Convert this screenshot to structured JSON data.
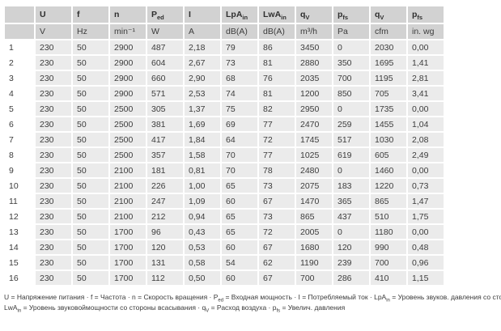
{
  "table": {
    "headers": [
      {
        "t": "",
        "s": ""
      },
      {
        "t": "U",
        "s": ""
      },
      {
        "t": "f",
        "s": ""
      },
      {
        "t": "n",
        "s": ""
      },
      {
        "t": "P",
        "s": "ed"
      },
      {
        "t": "I",
        "s": ""
      },
      {
        "t": "LpA",
        "s": "in"
      },
      {
        "t": "LwA",
        "s": "in"
      },
      {
        "t": "q",
        "s": "V"
      },
      {
        "t": "p",
        "s": "fs"
      },
      {
        "t": "q",
        "s": "V"
      },
      {
        "t": "p",
        "s": "fs"
      }
    ],
    "units": [
      "",
      "V",
      "Hz",
      "min⁻¹",
      "W",
      "A",
      "dB(A)",
      "dB(A)",
      "m³/h",
      "Pa",
      "cfm",
      "in. wg"
    ],
    "rows": [
      [
        "1",
        "230",
        "50",
        "2900",
        "487",
        "2,18",
        "79",
        "86",
        "3450",
        "0",
        "2030",
        "0,00"
      ],
      [
        "2",
        "230",
        "50",
        "2900",
        "604",
        "2,67",
        "73",
        "81",
        "2880",
        "350",
        "1695",
        "1,41"
      ],
      [
        "3",
        "230",
        "50",
        "2900",
        "660",
        "2,90",
        "68",
        "76",
        "2035",
        "700",
        "1195",
        "2,81"
      ],
      [
        "4",
        "230",
        "50",
        "2900",
        "571",
        "2,53",
        "74",
        "81",
        "1200",
        "850",
        "705",
        "3,41"
      ],
      [
        "5",
        "230",
        "50",
        "2500",
        "305",
        "1,37",
        "75",
        "82",
        "2950",
        "0",
        "1735",
        "0,00"
      ],
      [
        "6",
        "230",
        "50",
        "2500",
        "381",
        "1,69",
        "69",
        "77",
        "2470",
        "259",
        "1455",
        "1,04"
      ],
      [
        "7",
        "230",
        "50",
        "2500",
        "417",
        "1,84",
        "64",
        "72",
        "1745",
        "517",
        "1030",
        "2,08"
      ],
      [
        "8",
        "230",
        "50",
        "2500",
        "357",
        "1,58",
        "70",
        "77",
        "1025",
        "619",
        "605",
        "2,49"
      ],
      [
        "9",
        "230",
        "50",
        "2100",
        "181",
        "0,81",
        "70",
        "78",
        "2480",
        "0",
        "1460",
        "0,00"
      ],
      [
        "10",
        "230",
        "50",
        "2100",
        "226",
        "1,00",
        "65",
        "73",
        "2075",
        "183",
        "1220",
        "0,73"
      ],
      [
        "11",
        "230",
        "50",
        "2100",
        "247",
        "1,09",
        "60",
        "67",
        "1470",
        "365",
        "865",
        "1,47"
      ],
      [
        "12",
        "230",
        "50",
        "2100",
        "212",
        "0,94",
        "65",
        "73",
        "865",
        "437",
        "510",
        "1,75"
      ],
      [
        "13",
        "230",
        "50",
        "1700",
        "96",
        "0,43",
        "65",
        "72",
        "2005",
        "0",
        "1180",
        "0,00"
      ],
      [
        "14",
        "230",
        "50",
        "1700",
        "120",
        "0,53",
        "60",
        "67",
        "1680",
        "120",
        "990",
        "0,48"
      ],
      [
        "15",
        "230",
        "50",
        "1700",
        "131",
        "0,58",
        "54",
        "62",
        "1190",
        "239",
        "700",
        "0,96"
      ],
      [
        "16",
        "230",
        "50",
        "1700",
        "112",
        "0,50",
        "60",
        "67",
        "700",
        "286",
        "410",
        "1,15"
      ]
    ]
  },
  "footnote": {
    "line1": [
      {
        "t": "U = Напряжение питания · f = Частота · n = Скорость вращения · P"
      },
      {
        "s": "ed"
      },
      {
        "t": " = Входная мощность · I = Потребляемый ток · LpA"
      },
      {
        "s": "in"
      },
      {
        "t": " = Уровень звуков. давления со стороны всасывания"
      }
    ],
    "line2": [
      {
        "t": "LwA"
      },
      {
        "s": "in"
      },
      {
        "t": " = Уровень звуковоймощности со стороны всасывания · q"
      },
      {
        "s": "V"
      },
      {
        "t": " = Расход воздуха · p"
      },
      {
        "s": "fs"
      },
      {
        "t": " = Увелич. давления"
      }
    ]
  },
  "colors": {
    "header_bg": "#d2d2d2",
    "row_bg": "#ebebeb",
    "rownum_bg": "#ffffff",
    "text": "#3c3c3c"
  }
}
